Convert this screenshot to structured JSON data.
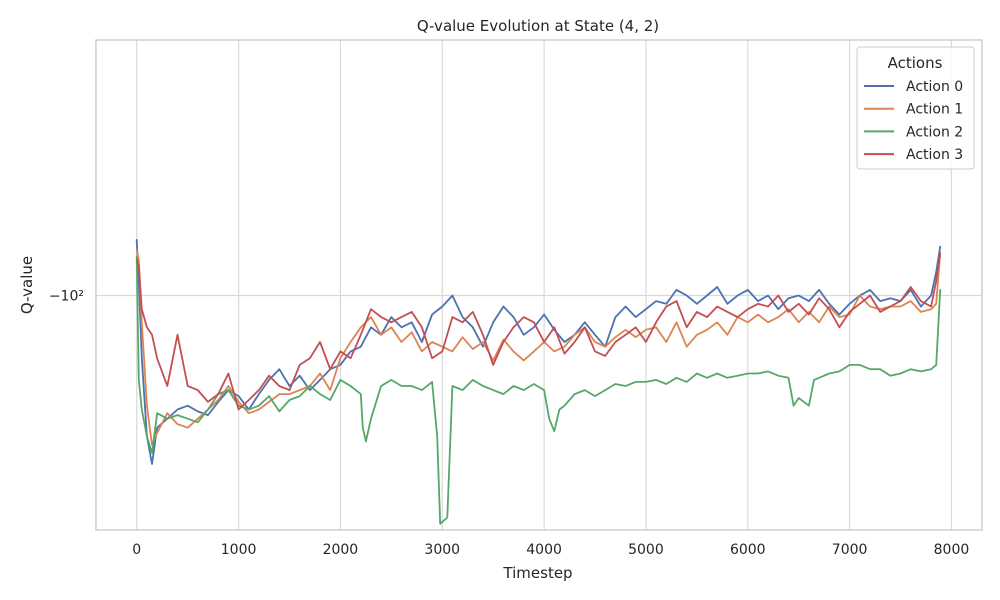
{
  "chart_data": {
    "type": "line",
    "title": "Q-value Evolution at State (4, 2)",
    "xlabel": "Timestep",
    "ylabel": "Q-value",
    "xlim": [
      -400,
      8300
    ],
    "ylim": [
      -230,
      -40
    ],
    "yscale": "symlog",
    "xticks": [
      0,
      1000,
      2000,
      3000,
      4000,
      5000,
      6000,
      7000,
      8000
    ],
    "yticks": [
      {
        "value": -100,
        "label": "−10²"
      }
    ],
    "grid": true,
    "legend": {
      "title": "Actions",
      "placement": "top-right"
    },
    "series": [
      {
        "name": "Action 0",
        "color": "#4c72b0",
        "x": [
          0,
          20,
          50,
          100,
          150,
          200,
          300,
          400,
          500,
          600,
          700,
          800,
          900,
          1000,
          1100,
          1200,
          1300,
          1400,
          1500,
          1600,
          1700,
          1800,
          1900,
          2000,
          2100,
          2200,
          2300,
          2400,
          2500,
          2600,
          2700,
          2800,
          2900,
          3000,
          3100,
          3200,
          3300,
          3400,
          3500,
          3600,
          3700,
          3800,
          3900,
          4000,
          4100,
          4200,
          4300,
          4400,
          4500,
          4600,
          4700,
          4800,
          4900,
          5000,
          5100,
          5200,
          5300,
          5400,
          5500,
          5600,
          5700,
          5800,
          5900,
          6000,
          6100,
          6200,
          6300,
          6400,
          6500,
          6600,
          6700,
          6800,
          6900,
          7000,
          7100,
          7200,
          7300,
          7400,
          7500,
          7600,
          7700,
          7800,
          7850,
          7890
        ],
        "y": [
          -82,
          -95,
          -125,
          -165,
          -182,
          -160,
          -155,
          -150,
          -148,
          -151,
          -153,
          -146,
          -140,
          -143,
          -150,
          -142,
          -135,
          -130,
          -138,
          -133,
          -140,
          -135,
          -130,
          -128,
          -122,
          -120,
          -112,
          -115,
          -108,
          -112,
          -110,
          -118,
          -107,
          -104,
          -100,
          -108,
          -112,
          -120,
          -110,
          -104,
          -108,
          -115,
          -112,
          -107,
          -113,
          -118,
          -115,
          -110,
          -115,
          -120,
          -108,
          -104,
          -108,
          -105,
          -102,
          -103,
          -98,
          -100,
          -103,
          -100,
          -97,
          -103,
          -100,
          -98,
          -102,
          -100,
          -105,
          -101,
          -100,
          -102,
          -98,
          -103,
          -107,
          -103,
          -100,
          -98,
          -102,
          -101,
          -102,
          -98,
          -104,
          -100,
          -92,
          -84
        ]
      },
      {
        "name": "Action 1",
        "color": "#dd8452",
        "x": [
          0,
          20,
          50,
          100,
          150,
          200,
          300,
          400,
          500,
          600,
          700,
          800,
          900,
          1000,
          1100,
          1200,
          1300,
          1400,
          1500,
          1600,
          1700,
          1800,
          1900,
          2000,
          2100,
          2200,
          2300,
          2400,
          2500,
          2600,
          2700,
          2800,
          2900,
          3000,
          3100,
          3200,
          3300,
          3400,
          3500,
          3600,
          3700,
          3800,
          3900,
          4000,
          4100,
          4200,
          4300,
          4400,
          4500,
          4600,
          4700,
          4800,
          4900,
          5000,
          5100,
          5200,
          5300,
          5400,
          5500,
          5600,
          5700,
          5800,
          5900,
          6000,
          6100,
          6200,
          6300,
          6400,
          6500,
          6600,
          6700,
          6800,
          6900,
          7000,
          7100,
          7200,
          7300,
          7400,
          7500,
          7600,
          7700,
          7800,
          7850,
          7890
        ],
        "y": [
          -85,
          -88,
          -110,
          -148,
          -170,
          -163,
          -152,
          -158,
          -160,
          -155,
          -150,
          -145,
          -138,
          -146,
          -152,
          -150,
          -146,
          -142,
          -142,
          -140,
          -138,
          -132,
          -140,
          -125,
          -118,
          -112,
          -108,
          -115,
          -112,
          -118,
          -114,
          -122,
          -118,
          -120,
          -122,
          -116,
          -121,
          -118,
          -126,
          -117,
          -122,
          -126,
          -122,
          -118,
          -122,
          -120,
          -115,
          -112,
          -118,
          -120,
          -116,
          -113,
          -116,
          -113,
          -112,
          -118,
          -110,
          -120,
          -115,
          -113,
          -110,
          -115,
          -108,
          -110,
          -107,
          -110,
          -108,
          -105,
          -110,
          -106,
          -110,
          -104,
          -108,
          -107,
          -100,
          -104,
          -105,
          -104,
          -104,
          -102,
          -106,
          -105,
          -103,
          -86
        ]
      },
      {
        "name": "Action 2",
        "color": "#55a868",
        "x": [
          0,
          20,
          50,
          100,
          150,
          200,
          300,
          400,
          500,
          600,
          700,
          800,
          900,
          1000,
          1100,
          1200,
          1300,
          1400,
          1500,
          1600,
          1700,
          1800,
          1900,
          2000,
          2100,
          2200,
          2220,
          2250,
          2300,
          2400,
          2500,
          2600,
          2700,
          2800,
          2900,
          2950,
          2980,
          3050,
          3100,
          3200,
          3300,
          3400,
          3500,
          3600,
          3700,
          3800,
          3900,
          4000,
          4050,
          4100,
          4150,
          4200,
          4300,
          4400,
          4500,
          4600,
          4700,
          4800,
          4900,
          5000,
          5100,
          5200,
          5300,
          5400,
          5500,
          5600,
          5700,
          5800,
          5900,
          6000,
          6100,
          6200,
          6300,
          6400,
          6450,
          6500,
          6600,
          6650,
          6700,
          6800,
          6900,
          7000,
          7100,
          7200,
          7300,
          7400,
          7500,
          7600,
          7700,
          7800,
          7850,
          7890
        ],
        "y": [
          -87,
          -135,
          -150,
          -165,
          -175,
          -152,
          -155,
          -153,
          -155,
          -157,
          -150,
          -142,
          -140,
          -148,
          -150,
          -148,
          -143,
          -151,
          -145,
          -143,
          -138,
          -142,
          -145,
          -135,
          -138,
          -142,
          -160,
          -168,
          -155,
          -138,
          -135,
          -138,
          -138,
          -140,
          -136,
          -165,
          -225,
          -220,
          -138,
          -140,
          -135,
          -138,
          -140,
          -142,
          -138,
          -140,
          -137,
          -140,
          -155,
          -162,
          -150,
          -148,
          -142,
          -140,
          -143,
          -140,
          -137,
          -138,
          -136,
          -136,
          -135,
          -137,
          -134,
          -136,
          -132,
          -134,
          -132,
          -134,
          -133,
          -132,
          -132,
          -131,
          -133,
          -134,
          -148,
          -144,
          -148,
          -135,
          -134,
          -132,
          -131,
          -128,
          -128,
          -130,
          -130,
          -133,
          -132,
          -130,
          -131,
          -130,
          -128,
          -98
        ]
      },
      {
        "name": "Action 3",
        "color": "#c44e52",
        "x": [
          0,
          20,
          50,
          100,
          150,
          200,
          300,
          400,
          500,
          600,
          700,
          800,
          900,
          1000,
          1100,
          1200,
          1300,
          1400,
          1500,
          1600,
          1700,
          1800,
          1900,
          2000,
          2100,
          2200,
          2300,
          2400,
          2500,
          2600,
          2700,
          2800,
          2900,
          3000,
          3100,
          3200,
          3300,
          3400,
          3500,
          3600,
          3700,
          3800,
          3900,
          4000,
          4100,
          4200,
          4300,
          4400,
          4500,
          4600,
          4700,
          4800,
          4900,
          5000,
          5100,
          5200,
          5300,
          5400,
          5500,
          5600,
          5700,
          5800,
          5900,
          6000,
          6100,
          6200,
          6300,
          6400,
          6500,
          6600,
          6700,
          6800,
          6900,
          7000,
          7100,
          7200,
          7300,
          7400,
          7500,
          7600,
          7700,
          7800,
          7850,
          7890
        ],
        "y": [
          -88,
          -90,
          -105,
          -112,
          -115,
          -125,
          -138,
          -115,
          -138,
          -140,
          -146,
          -142,
          -132,
          -150,
          -145,
          -140,
          -133,
          -138,
          -140,
          -128,
          -125,
          -118,
          -130,
          -122,
          -125,
          -115,
          -105,
          -108,
          -110,
          -108,
          -106,
          -112,
          -125,
          -122,
          -108,
          -110,
          -106,
          -115,
          -128,
          -118,
          -112,
          -108,
          -110,
          -118,
          -112,
          -123,
          -118,
          -112,
          -122,
          -124,
          -118,
          -115,
          -112,
          -118,
          -110,
          -104,
          -102,
          -112,
          -106,
          -108,
          -104,
          -106,
          -108,
          -105,
          -103,
          -104,
          -100,
          -106,
          -103,
          -107,
          -101,
          -105,
          -112,
          -106,
          -103,
          -100,
          -106,
          -104,
          -102,
          -97,
          -102,
          -104,
          -95,
          -86
        ]
      }
    ]
  }
}
